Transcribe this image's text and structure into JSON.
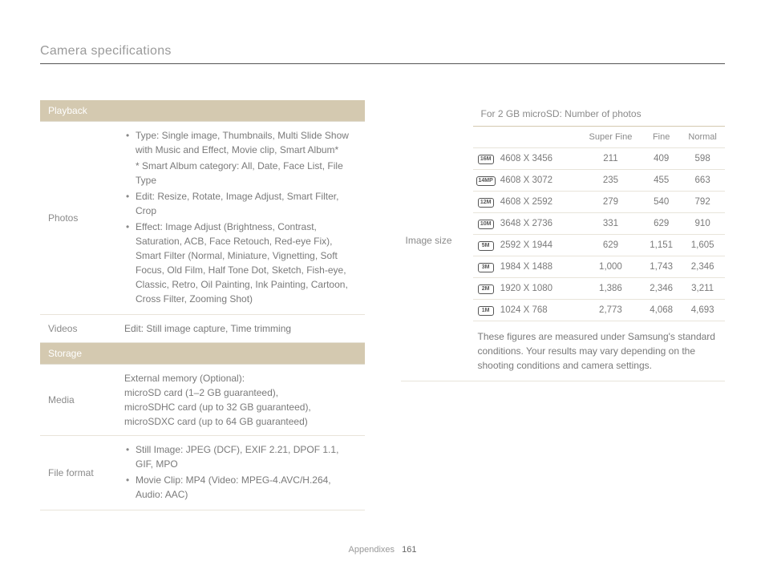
{
  "header": {
    "title": "Camera specifications"
  },
  "left": {
    "sections": [
      {
        "header": "Playback",
        "rows": [
          {
            "label": "Photos",
            "items": [
              "Type: Single image, Thumbnails, Multi Slide Show with Music and Effect, Movie clip, Smart Album*"
            ],
            "indent_note": "* Smart Album category: All, Date, Face List, File Type",
            "items2": [
              "Edit: Resize, Rotate, Image Adjust, Smart Filter, Crop",
              "Effect: Image Adjust (Brightness, Contrast, Saturation, ACB, Face Retouch, Red-eye Fix), Smart Filter (Normal, Miniature, Vignetting, Soft Focus, Old Film, Half Tone Dot, Sketch, Fish-eye, Classic, Retro, Oil Painting, Ink Painting, Cartoon, Cross Filter, Zooming Shot)"
            ]
          },
          {
            "label": "Videos",
            "text": "Edit: Still image capture, Time trimming"
          }
        ]
      },
      {
        "header": "Storage",
        "rows": [
          {
            "label": "Media",
            "lines": [
              "External memory (Optional):",
              "microSD card (1–2 GB guaranteed),",
              "microSDHC card (up to 32 GB guaranteed),",
              "microSDXC card (up to 64 GB guaranteed)"
            ]
          },
          {
            "label": "File format",
            "items": [
              "Still Image: JPEG (DCF), EXIF 2.21, DPOF 1.1, GIF, MPO",
              "Movie Clip: MP4 (Video: MPEG-4.AVC/H.264, Audio: AAC)"
            ]
          }
        ]
      }
    ]
  },
  "right": {
    "label": "Image size",
    "caption": "For 2 GB microSD: Number of photos",
    "columns": [
      "",
      "",
      "Super Fine",
      "Fine",
      "Normal"
    ],
    "rows": [
      {
        "icon": "16M",
        "res": "4608 X 3456",
        "sf": "211",
        "f": "409",
        "n": "598"
      },
      {
        "icon": "14MP",
        "res": "4608 X 3072",
        "sf": "235",
        "f": "455",
        "n": "663"
      },
      {
        "icon": "12M",
        "res": "4608 X 2592",
        "sf": "279",
        "f": "540",
        "n": "792"
      },
      {
        "icon": "10M",
        "res": "3648 X 2736",
        "sf": "331",
        "f": "629",
        "n": "910"
      },
      {
        "icon": "5M",
        "res": "2592 X 1944",
        "sf": "629",
        "f": "1,151",
        "n": "1,605"
      },
      {
        "icon": "3M",
        "res": "1984 X 1488",
        "sf": "1,000",
        "f": "1,743",
        "n": "2,346"
      },
      {
        "icon": "2M",
        "res": "1920 X 1080",
        "sf": "1,386",
        "f": "2,346",
        "n": "3,211"
      },
      {
        "icon": "1M",
        "res": "1024 X 768",
        "sf": "2,773",
        "f": "4,068",
        "n": "4,693"
      }
    ],
    "note": "These figures are measured under Samsung's standard conditions. Your results may vary depending on the shooting conditions and camera settings."
  },
  "footer": {
    "section": "Appendixes",
    "page": "161"
  },
  "colors": {
    "section_header_bg": "#d4c9b0",
    "border": "#e8e4da",
    "text": "#7a7a7a"
  }
}
